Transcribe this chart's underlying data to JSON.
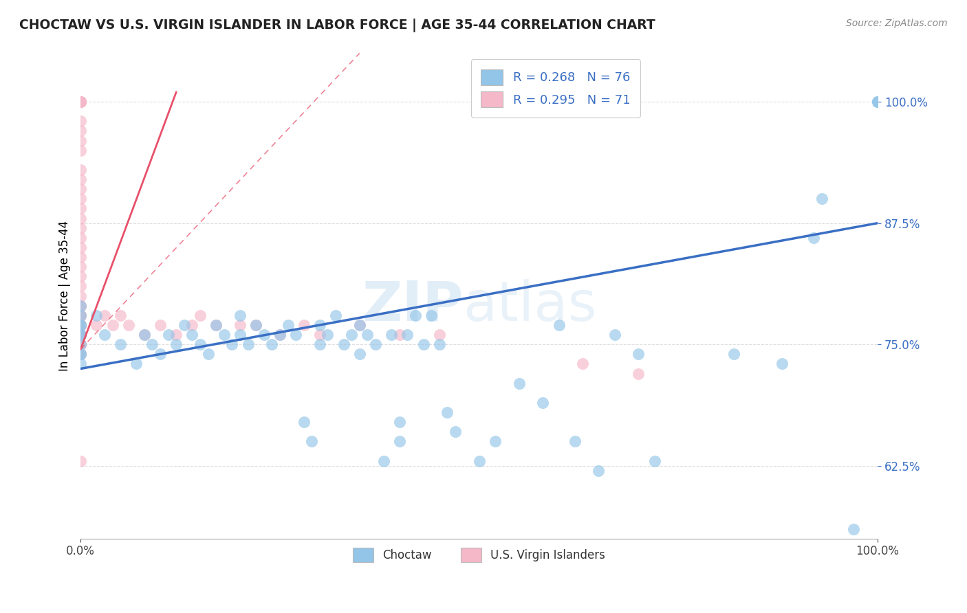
{
  "title": "CHOCTAW VS U.S. VIRGIN ISLANDER IN LABOR FORCE | AGE 35-44 CORRELATION CHART",
  "source": "Source: ZipAtlas.com",
  "ylabel": "In Labor Force | Age 35-44",
  "y_ticks": [
    0.625,
    0.75,
    0.875,
    1.0
  ],
  "y_tick_labels": [
    "62.5%",
    "75.0%",
    "87.5%",
    "100.0%"
  ],
  "x_range": [
    0.0,
    1.0
  ],
  "y_range": [
    0.55,
    1.05
  ],
  "choctaw_color": "#92C5E8",
  "virgin_color": "#F5B8C8",
  "choctaw_line_color": "#3A6FC4",
  "virgin_line_color": "#E8506A",
  "choctaw_x": [
    0.0,
    0.0,
    0.0,
    0.0,
    0.0,
    0.0,
    0.0,
    0.0,
    0.0,
    0.0,
    0.02,
    0.03,
    0.05,
    0.07,
    0.08,
    0.09,
    0.1,
    0.11,
    0.12,
    0.13,
    0.14,
    0.15,
    0.16,
    0.17,
    0.18,
    0.19,
    0.2,
    0.2,
    0.21,
    0.22,
    0.23,
    0.24,
    0.25,
    0.26,
    0.27,
    0.28,
    0.29,
    0.3,
    0.3,
    0.31,
    0.32,
    0.33,
    0.34,
    0.35,
    0.35,
    0.36,
    0.37,
    0.38,
    0.39,
    0.4,
    0.4,
    0.41,
    0.42,
    0.43,
    0.44,
    0.45,
    0.46,
    0.47,
    0.5,
    0.52,
    0.55,
    0.58,
    0.6,
    0.62,
    0.65,
    0.67,
    0.7,
    0.72,
    0.82,
    0.88,
    0.92,
    0.93,
    0.97,
    1.0,
    1.0,
    1.0
  ],
  "choctaw_y": [
    0.76,
    0.74,
    0.77,
    0.79,
    0.75,
    0.74,
    0.73,
    0.78,
    0.77,
    0.76,
    0.78,
    0.76,
    0.75,
    0.73,
    0.76,
    0.75,
    0.74,
    0.76,
    0.75,
    0.77,
    0.76,
    0.75,
    0.74,
    0.77,
    0.76,
    0.75,
    0.76,
    0.78,
    0.75,
    0.77,
    0.76,
    0.75,
    0.76,
    0.77,
    0.76,
    0.67,
    0.65,
    0.77,
    0.75,
    0.76,
    0.78,
    0.75,
    0.76,
    0.74,
    0.77,
    0.76,
    0.75,
    0.63,
    0.76,
    0.67,
    0.65,
    0.76,
    0.78,
    0.75,
    0.78,
    0.75,
    0.68,
    0.66,
    0.63,
    0.65,
    0.71,
    0.69,
    0.77,
    0.65,
    0.62,
    0.76,
    0.74,
    0.63,
    0.74,
    0.73,
    0.86,
    0.9,
    0.56,
    1.0,
    1.0,
    1.0
  ],
  "virgin_x": [
    0.0,
    0.0,
    0.0,
    0.0,
    0.0,
    0.0,
    0.0,
    0.0,
    0.0,
    0.0,
    0.0,
    0.0,
    0.0,
    0.0,
    0.0,
    0.0,
    0.0,
    0.0,
    0.0,
    0.0,
    0.0,
    0.0,
    0.0,
    0.0,
    0.0,
    0.0,
    0.0,
    0.0,
    0.0,
    0.0,
    0.0,
    0.0,
    0.0,
    0.0,
    0.0,
    0.0,
    0.0,
    0.0,
    0.0,
    0.0,
    0.0,
    0.0,
    0.0,
    0.0,
    0.0,
    0.0,
    0.0,
    0.0,
    0.0,
    0.02,
    0.03,
    0.04,
    0.05,
    0.06,
    0.08,
    0.1,
    0.12,
    0.14,
    0.15,
    0.17,
    0.2,
    0.22,
    0.25,
    0.28,
    0.3,
    0.35,
    0.4,
    0.45,
    0.63,
    0.7
  ],
  "virgin_y": [
    1.0,
    1.0,
    1.0,
    1.0,
    1.0,
    1.0,
    0.98,
    0.97,
    0.96,
    0.95,
    0.93,
    0.92,
    0.91,
    0.9,
    0.89,
    0.88,
    0.87,
    0.86,
    0.85,
    0.84,
    0.83,
    0.82,
    0.81,
    0.8,
    0.79,
    0.78,
    0.77,
    0.77,
    0.78,
    0.79,
    0.77,
    0.76,
    0.77,
    0.78,
    0.76,
    0.75,
    0.76,
    0.77,
    0.75,
    0.76,
    0.77,
    0.76,
    0.75,
    0.74,
    0.76,
    0.75,
    0.74,
    0.75,
    0.63,
    0.77,
    0.78,
    0.77,
    0.78,
    0.77,
    0.76,
    0.77,
    0.76,
    0.77,
    0.78,
    0.77,
    0.77,
    0.77,
    0.76,
    0.77,
    0.76,
    0.77,
    0.76,
    0.76,
    0.73,
    0.72
  ],
  "watermark_zip": "ZIP",
  "watermark_atlas": "atlas",
  "background_color": "#FFFFFF",
  "grid_color": "#DDDDDD",
  "blue_trend_y0": 0.725,
  "blue_trend_y1": 0.875,
  "pink_trend_x0": 0.0,
  "pink_trend_x1": 0.12,
  "pink_trend_y0": 0.745,
  "pink_trend_y1": 1.01
}
